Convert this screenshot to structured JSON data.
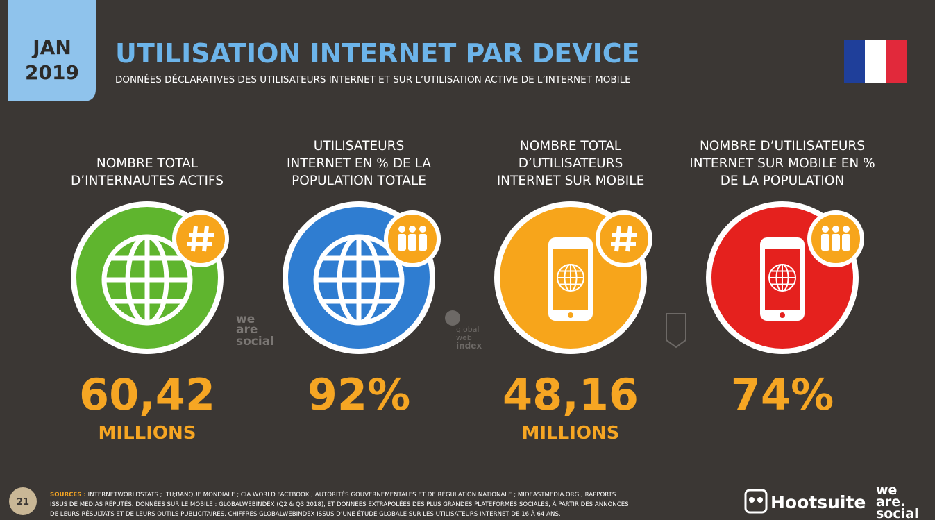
{
  "header": {
    "badge_month": "JAN",
    "badge_year": "2019",
    "title": "UTILISATION INTERNET PAR DEVICE",
    "subtitle": "DONNÉES DÉCLARATIVES DES UTILISATEURS INTERNET ET SUR L’UTILISATION ACTIVE DE L’INTERNET MOBILE"
  },
  "cards": [
    {
      "label": [
        "NOMBRE TOTAL",
        "D’INTERNAUTES ACTIFS"
      ],
      "value": "60,42",
      "unit": "MILLIONS"
    },
    {
      "label": [
        "UTILISATEURS",
        "INTERNET EN % DE LA",
        "POPULATION TOTALE"
      ],
      "value": "92%"
    },
    {
      "label": [
        "NOMBRE TOTAL",
        "D’UTILISATEURS",
        "INTERNET SUR MOBILE"
      ],
      "value": "48,16",
      "unit": "MILLIONS"
    },
    {
      "label": [
        "NOMBRE D’UTILISATEURS",
        "INTERNET SUR MOBILE EN %",
        "DE LA POPULATION"
      ],
      "value": "74%"
    }
  ],
  "watermarks": {
    "we_are_social": [
      "we",
      "are",
      "social"
    ],
    "gwi": [
      "global",
      "web",
      "index"
    ]
  },
  "footer": {
    "page": "21",
    "sources_label": "SOURCES :",
    "sources": [
      "INTERNETWORLDSTATS ; ITU;BANQUE MONDIALE ; CIA WORLD FACTBOOK ; AUTORITÉS GOUVERNEMENTALES ET DE RÉGULATION NATIONALE ; MIDEASTMEDIA.ORG ; RAPPORTS",
      "ISSUS DE MÉDIAS RÉPUTÉS. DONNÉES SUR LE MOBILE : GLOBALWEBINDEX (Q2 & Q3 2018), ET DONNÉES EXTRAPOLÉES DES PLUS GRANDES PLATEFORMES SOCIALES, À PARTIR DES ANNONCES",
      "DE LEURS RÉSULTATS ET DE LEURS OUTILS PUBLICITAIRES. CHIFFRES GLOBALWEBINDEX ISSUS D’UNE ÉTUDE GLOBALE SUR LES UTILISATEURS INTERNET DE 16 À 64 ANS."
    ],
    "hootsuite": "Hootsuite",
    "we_are_social": [
      "we",
      "are.",
      "social"
    ]
  }
}
